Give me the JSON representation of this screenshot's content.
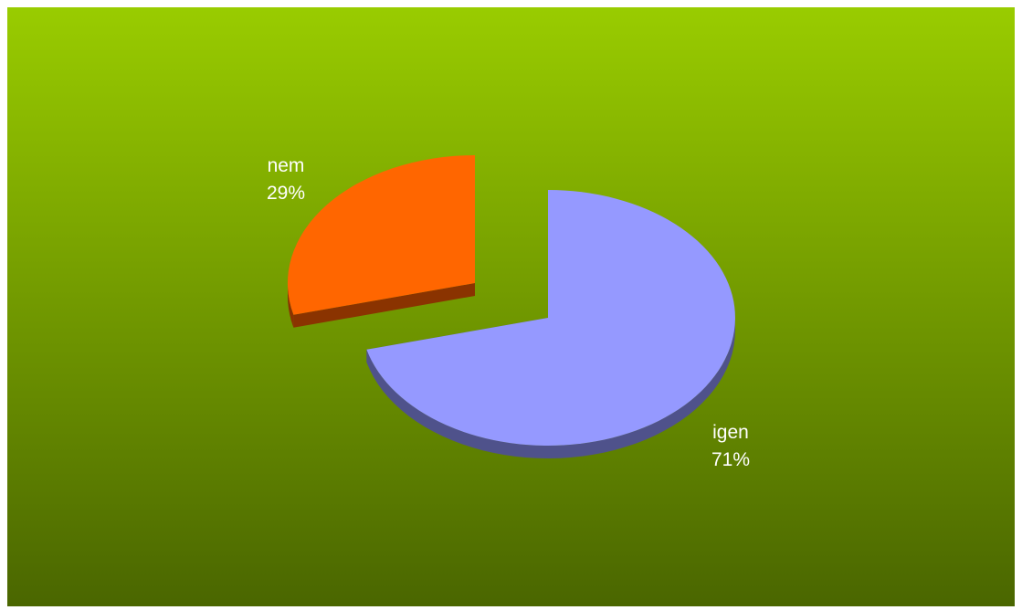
{
  "chart_data": {
    "type": "pie",
    "style": "3d-exploded",
    "title": "",
    "slices": [
      {
        "name": "igen",
        "value": 71,
        "pct_label": "71%",
        "color": "#9599FF",
        "side_color": "#4F528B"
      },
      {
        "name": "nem",
        "value": 29,
        "pct_label": "29%",
        "color": "#FF6600",
        "side_color": "#8A3300"
      }
    ],
    "background": {
      "top_color": "#99CC00",
      "bottom_color": "#4A6600"
    }
  }
}
